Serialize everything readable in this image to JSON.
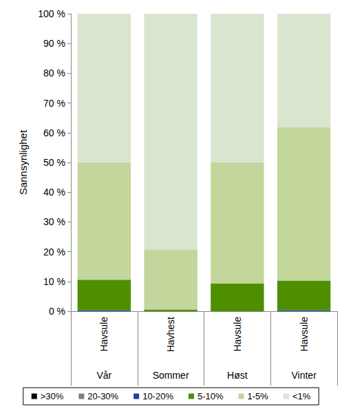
{
  "chart_data": {
    "type": "bar",
    "stacked": true,
    "y_label": "Sannsynlighet",
    "categories": [
      "Vår",
      "Sommer",
      "Høst",
      "Vinter"
    ],
    "species": [
      "Havsule",
      "Havhest",
      "Havsule",
      "Havsule"
    ],
    "ylim": [
      0,
      100
    ],
    "yticks": [
      {
        "value": 0,
        "label": "0 %"
      },
      {
        "value": 10,
        "label": "10 %"
      },
      {
        "value": 20,
        "label": "20 %"
      },
      {
        "value": 30,
        "label": "30 %"
      },
      {
        "value": 40,
        "label": "40 %"
      },
      {
        "value": 50,
        "label": "50 %"
      },
      {
        "value": 60,
        "label": "60 %"
      },
      {
        "value": 70,
        "label": "70 %"
      },
      {
        "value": 80,
        "label": "80 %"
      },
      {
        "value": 90,
        "label": "90 %"
      },
      {
        "value": 100,
        "label": "100 %"
      }
    ],
    "grid": false,
    "legend": "bottom",
    "series": [
      {
        "name": ">30%",
        "color": "#000000",
        "values": [
          0,
          0,
          0,
          0
        ]
      },
      {
        "name": "20-30%",
        "color": "#7f7f7f",
        "values": [
          0,
          0,
          0,
          0
        ]
      },
      {
        "name": "10-20%",
        "color": "#1f3fa0",
        "values": [
          0.3,
          0,
          0,
          0.3
        ]
      },
      {
        "name": "5-10%",
        "color": "#4e8f00",
        "values": [
          10.3,
          0.6,
          9.4,
          10.0
        ]
      },
      {
        "name": "1-5%",
        "color": "#c3d69b",
        "values": [
          39.4,
          20.2,
          40.6,
          51.5
        ]
      },
      {
        "name": "<1%",
        "color": "#d9e5cf",
        "values": [
          50.0,
          79.2,
          50.0,
          38.2
        ]
      }
    ]
  }
}
